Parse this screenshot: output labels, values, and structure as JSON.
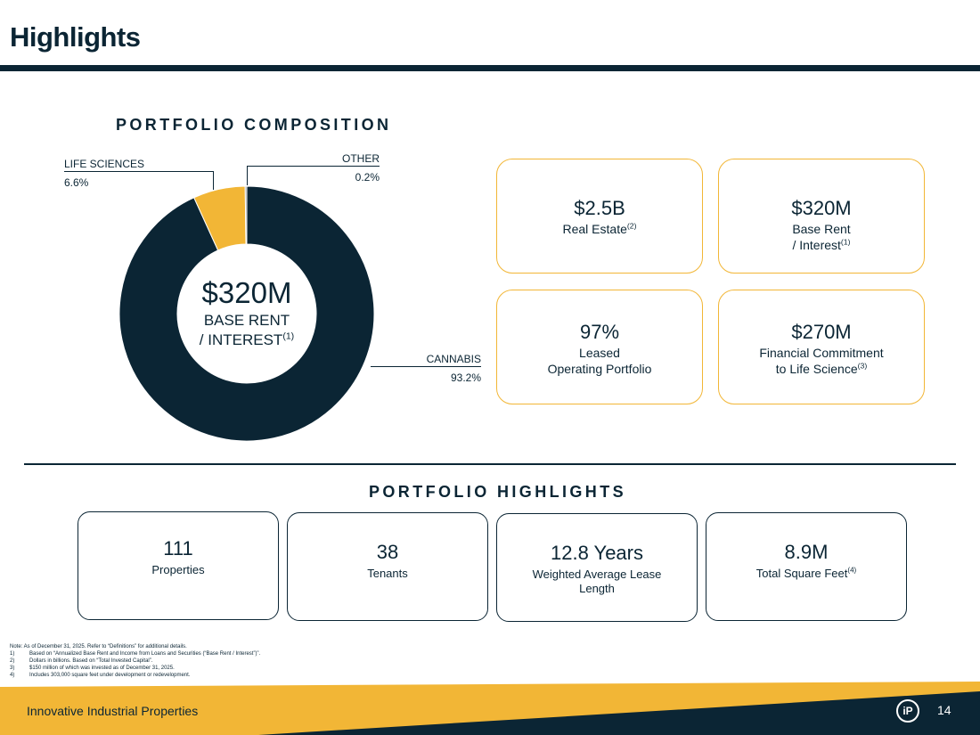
{
  "page": {
    "title": "Highlights",
    "page_number": "14",
    "footer_company": "Innovative Industrial Properties",
    "logo_text": "iP"
  },
  "colors": {
    "navy": "#0b2534",
    "gold": "#f2b636",
    "grey": "#8a8f96"
  },
  "portfolio_composition": {
    "heading": "PORTFOLIO COMPOSITION",
    "center_value": "$320M",
    "center_label_line1": "BASE RENT",
    "center_label_line2": "/ INTEREST",
    "center_label_sup": "(1)"
  },
  "chart_data": {
    "type": "pie",
    "title": "PORTFOLIO COMPOSITION",
    "categories": [
      "CANNABIS",
      "LIFE SCIENCES",
      "OTHER"
    ],
    "values": [
      93.2,
      6.6,
      0.2
    ],
    "value_labels": [
      "93.2%",
      "6.6%",
      "0.2%"
    ],
    "colors": [
      "#0b2534",
      "#f2b636",
      "#8a8f96"
    ],
    "donut": true
  },
  "kpis": [
    {
      "value": "$2.5B",
      "label": "Real Estate",
      "sup": "(2)",
      "label2": "",
      "sup2": ""
    },
    {
      "value": "$320M",
      "label": "Base Rent",
      "sup": "",
      "label2": "/ Interest",
      "sup2": "(1)"
    },
    {
      "value": "97%",
      "label": "Leased",
      "sup": "",
      "label2": "Operating Portfolio",
      "sup2": ""
    },
    {
      "value": "$270M",
      "label": "Financial Commitment",
      "sup": "",
      "label2": "to Life Science",
      "sup2": "(3)"
    }
  ],
  "portfolio_highlights": {
    "heading": "PORTFOLIO HIGHLIGHTS",
    "cards": [
      {
        "value": "111",
        "label": "Properties",
        "sup": ""
      },
      {
        "value": "38",
        "label": "Tenants",
        "sup": ""
      },
      {
        "value": "12.8 Years",
        "label": "Weighted Average Lease Length",
        "sup": ""
      },
      {
        "value": "8.9M",
        "label": "Total Square Feet",
        "sup": "(4)"
      }
    ]
  },
  "notes": {
    "intro": "Note: As of December 31, 2025. Refer to “Definitions” for additional details.",
    "items": [
      {
        "num": "1)",
        "text": "Based on “Annualized Base Rent and Income from Loans and Securities (“Base Rent / Interest”)”."
      },
      {
        "num": "2)",
        "text": "Dollars in billions. Based on “Total Invested Capital”."
      },
      {
        "num": "3)",
        "text": "$150 million of which was invested as of December 31, 2025."
      },
      {
        "num": "4)",
        "text": "Includes 303,000 square feet under development or redevelopment."
      }
    ]
  }
}
